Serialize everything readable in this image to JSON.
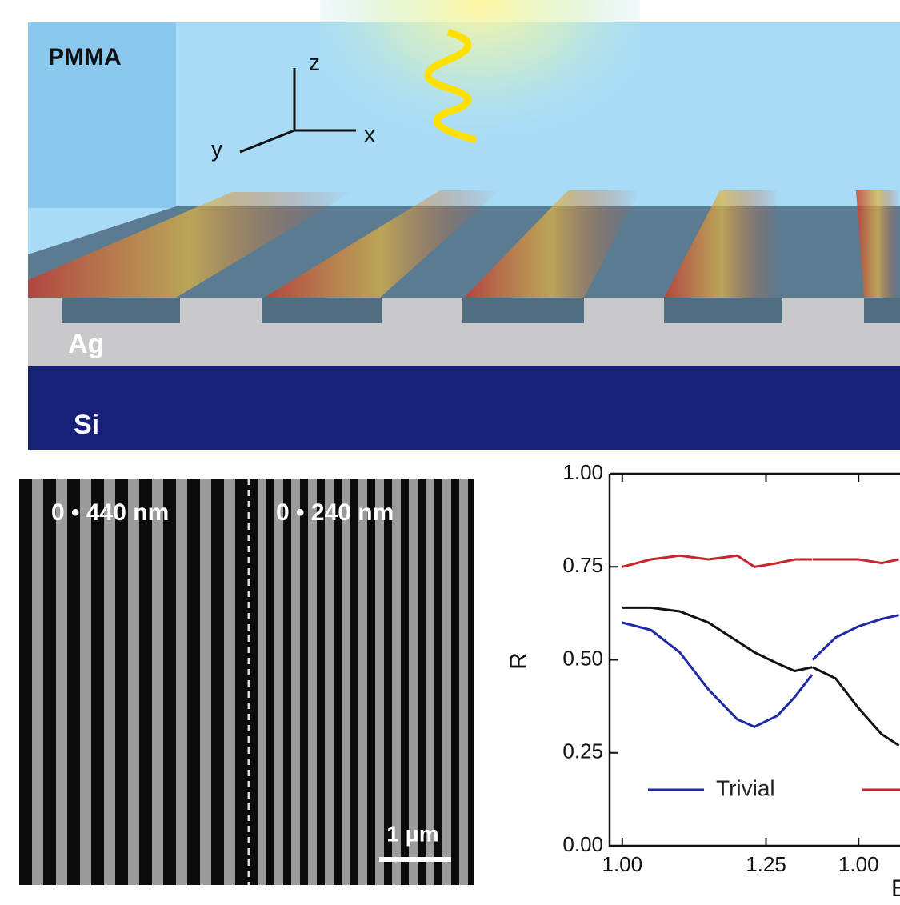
{
  "schematic": {
    "labels": {
      "pmma": "PMMA",
      "z": "z",
      "y": "y",
      "x": "x",
      "ag": "Ag",
      "si": "Si"
    }
  },
  "sem": {
    "left_label": "0 • 440 nm",
    "right_label": "0 • 240 nm",
    "scale_bar": "1 μm"
  },
  "chart_data": [
    {
      "type": "line",
      "y_label": "R",
      "xlim": [
        0.978,
        1.33
      ],
      "ylim": [
        0,
        1
      ],
      "xticks": [
        {
          "value": 1,
          "label": "1.00"
        },
        {
          "value": 1.25,
          "label": "1.25"
        }
      ],
      "yticks": [
        {
          "value": 0,
          "label": "0.00"
        },
        {
          "value": 0.25,
          "label": "0.25"
        },
        {
          "value": 0.5,
          "label": "0.50"
        },
        {
          "value": 0.75,
          "label": "0.75"
        },
        {
          "value": 1,
          "label": "1.00"
        }
      ],
      "x": [
        1.0,
        1.05,
        1.1,
        1.15,
        1.2,
        1.23,
        1.27,
        1.3,
        1.33
      ],
      "series": [
        {
          "name": "Trivial",
          "color": "#1f2aa8",
          "values": [
            0.6,
            0.58,
            0.52,
            0.42,
            0.34,
            0.32,
            0.35,
            0.4,
            0.46
          ]
        },
        {
          "color": "#c8262a",
          "values": [
            0.75,
            0.77,
            0.78,
            0.77,
            0.78,
            0.75,
            0.76,
            0.77,
            0.77
          ]
        },
        {
          "color": "#111111",
          "values": [
            0.64,
            0.64,
            0.63,
            0.6,
            0.55,
            0.52,
            0.49,
            0.47,
            0.48
          ]
        }
      ]
    },
    {
      "type": "line",
      "x_label": "E",
      "xlim": [
        0.919,
        1.072
      ],
      "ylim": [
        0,
        1
      ],
      "xticks": [
        {
          "value": 1,
          "label": "1.00"
        }
      ],
      "x": [
        0.92,
        0.96,
        1.0,
        1.04,
        1.07
      ],
      "series": [
        {
          "color": "#1f2aa8",
          "values": [
            0.5,
            0.56,
            0.59,
            0.61,
            0.62
          ]
        },
        {
          "color": "#c8262a",
          "values": [
            0.77,
            0.77,
            0.77,
            0.76,
            0.77
          ]
        },
        {
          "color": "#111111",
          "values": [
            0.48,
            0.45,
            0.37,
            0.3,
            0.27
          ]
        }
      ]
    }
  ]
}
